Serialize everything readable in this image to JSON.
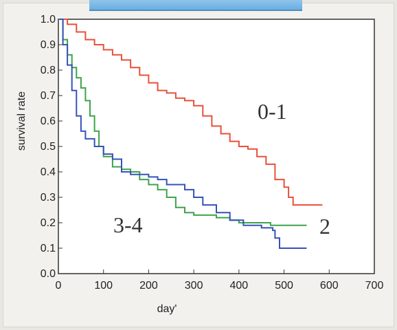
{
  "chart_data": {
    "type": "line",
    "title": "",
    "xlabel": "day'",
    "ylabel": "survival rate",
    "xlim": [
      0,
      700
    ],
    "ylim": [
      0,
      1.0
    ],
    "x_ticks": [
      "0",
      "100",
      "200",
      "300",
      "400",
      "500",
      "600",
      "700"
    ],
    "y_ticks": [
      "0.0",
      "0.1",
      "0.2",
      "0.3",
      "0.4",
      "0.5",
      "0.6",
      "0.7",
      "0.8",
      "0.9",
      "1.0"
    ],
    "grid": false,
    "series": [
      {
        "name": "0-1",
        "color": "#e8503a",
        "points": [
          [
            0,
            1.0
          ],
          [
            20,
            0.98
          ],
          [
            40,
            0.95
          ],
          [
            60,
            0.92
          ],
          [
            80,
            0.9
          ],
          [
            100,
            0.88
          ],
          [
            120,
            0.86
          ],
          [
            140,
            0.84
          ],
          [
            160,
            0.81
          ],
          [
            180,
            0.78
          ],
          [
            200,
            0.75
          ],
          [
            220,
            0.72
          ],
          [
            240,
            0.71
          ],
          [
            260,
            0.69
          ],
          [
            280,
            0.68
          ],
          [
            300,
            0.66
          ],
          [
            320,
            0.62
          ],
          [
            340,
            0.58
          ],
          [
            360,
            0.55
          ],
          [
            380,
            0.52
          ],
          [
            400,
            0.5
          ],
          [
            420,
            0.49
          ],
          [
            440,
            0.46
          ],
          [
            460,
            0.43
          ],
          [
            480,
            0.37
          ],
          [
            500,
            0.34
          ],
          [
            510,
            0.3
          ],
          [
            520,
            0.27
          ],
          [
            585,
            0.27
          ]
        ]
      },
      {
        "name": "2",
        "color": "#3aa44a",
        "points": [
          [
            0,
            1.0
          ],
          [
            10,
            0.92
          ],
          [
            20,
            0.86
          ],
          [
            30,
            0.81
          ],
          [
            40,
            0.77
          ],
          [
            50,
            0.73
          ],
          [
            60,
            0.68
          ],
          [
            70,
            0.62
          ],
          [
            80,
            0.56
          ],
          [
            90,
            0.5
          ],
          [
            100,
            0.46
          ],
          [
            120,
            0.42
          ],
          [
            140,
            0.41
          ],
          [
            160,
            0.4
          ],
          [
            180,
            0.37
          ],
          [
            200,
            0.35
          ],
          [
            220,
            0.33
          ],
          [
            240,
            0.3
          ],
          [
            260,
            0.26
          ],
          [
            280,
            0.24
          ],
          [
            300,
            0.23
          ],
          [
            350,
            0.22
          ],
          [
            380,
            0.21
          ],
          [
            400,
            0.2
          ],
          [
            420,
            0.2
          ],
          [
            470,
            0.19
          ],
          [
            550,
            0.19
          ]
        ]
      },
      {
        "name": "3-4",
        "color": "#3552b8",
        "points": [
          [
            0,
            1.0
          ],
          [
            10,
            0.9
          ],
          [
            20,
            0.82
          ],
          [
            30,
            0.72
          ],
          [
            40,
            0.62
          ],
          [
            50,
            0.56
          ],
          [
            60,
            0.53
          ],
          [
            80,
            0.5
          ],
          [
            100,
            0.47
          ],
          [
            120,
            0.45
          ],
          [
            140,
            0.4
          ],
          [
            160,
            0.39
          ],
          [
            180,
            0.39
          ],
          [
            200,
            0.38
          ],
          [
            220,
            0.37
          ],
          [
            240,
            0.35
          ],
          [
            260,
            0.35
          ],
          [
            280,
            0.33
          ],
          [
            300,
            0.3
          ],
          [
            320,
            0.27
          ],
          [
            350,
            0.24
          ],
          [
            380,
            0.21
          ],
          [
            410,
            0.19
          ],
          [
            450,
            0.18
          ],
          [
            475,
            0.17
          ],
          [
            480,
            0.14
          ],
          [
            490,
            0.1
          ],
          [
            550,
            0.1
          ]
        ]
      }
    ]
  }
}
